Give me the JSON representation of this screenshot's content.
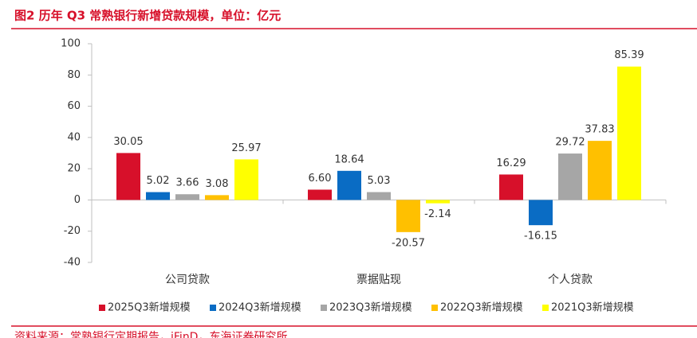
{
  "chart_data": {
    "type": "bar",
    "title": "图2 历年 Q3 常熟银行新增贷款规模，单位：亿元",
    "source": "资料来源：常熟银行定期报告，iFinD，东海证券研究所",
    "categories": [
      "公司贷款",
      "票据贴现",
      "个人贷款"
    ],
    "series": [
      {
        "name": "2025Q3新增规模",
        "color": "#d7102a",
        "values": [
          30.05,
          6.6,
          16.29
        ],
        "value_labels": [
          "30.05",
          "6.60",
          "16.29"
        ]
      },
      {
        "name": "2024Q3新增规模",
        "color": "#0a6cc4",
        "values": [
          5.02,
          18.64,
          -16.15
        ],
        "value_labels": [
          "5.02",
          "18.64",
          "-16.15"
        ]
      },
      {
        "name": "2023Q3新增规模",
        "color": "#a6a6a6",
        "values": [
          3.66,
          5.03,
          29.72
        ],
        "value_labels": [
          "3.66",
          "5.03",
          "29.72"
        ]
      },
      {
        "name": "2022Q3新增规模",
        "color": "#ffc000",
        "values": [
          3.08,
          -20.57,
          37.83
        ],
        "value_labels": [
          "3.08",
          "-20.57",
          "37.83"
        ]
      },
      {
        "name": "2021Q3新增规模",
        "color": "#ffff00",
        "values": [
          25.97,
          -2.14,
          85.39
        ],
        "value_labels": [
          "25.97",
          "-2.14",
          "85.39"
        ]
      }
    ],
    "ylim": [
      -40,
      100
    ],
    "yticks": [
      -40,
      -20,
      0,
      20,
      40,
      60,
      80,
      100
    ],
    "legend": "bottom"
  }
}
